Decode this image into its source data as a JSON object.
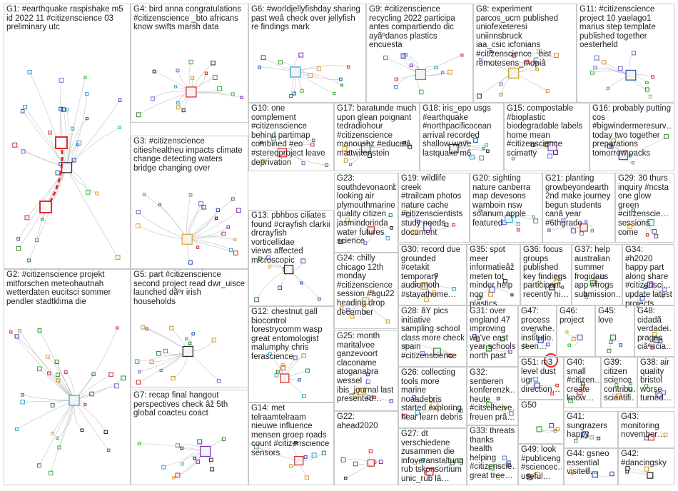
{
  "groups": [
    {
      "id": "G1",
      "text": "G1: #earthquake raspishake m5\nid 2022 11 #citizenscience 03\npreliminary utc"
    },
    {
      "id": "G4",
      "text": "G4: bird anna congratulations\n#citizenscience _bto africans\nknow swifts marsh data"
    },
    {
      "id": "G6",
      "text": "G6: #worldjellyfishday sharing\npast weâ check over jellyfish\nre findings mark"
    },
    {
      "id": "G9",
      "text": "G9: #citizenscience\nrecycling 2022 participa\nantes compartiendo dic\nayãºdanos plastics\nencuesta"
    },
    {
      "id": "G8",
      "text": "G8: experiment\nparcos_ucm published\nuniofexeteresi uniinnsbruck\niaa_csic icfonians\n#citizenscience _bist\nremotesens_mdpiâ"
    },
    {
      "id": "G11",
      "text": "G11: #citizenscience\nproject 10 yaelago1\nmarius step template\npublished together\noesterheld"
    },
    {
      "id": "G10",
      "text": "G10: one complement\n#citizenscience\nbehind partimap\ncombined #eo\n#stereoproject leave\ndeprivation"
    },
    {
      "id": "G17",
      "text": "G17: baratunde much\nupon glean poignant\ntedradiohour\n#citizenscience\nmanoushz #educatâ\nmattwitenstein"
    },
    {
      "id": "G18",
      "text": "G18: iris_epo usgs\n#earthquake\n#northpacificocean\narrival recorded\nshallow wave\nlastquake m6"
    },
    {
      "id": "G15",
      "text": "G15: compostable\n#bioplastic\nbiodegradable labels\nhome mean\n#citizenscience\nscimatty"
    },
    {
      "id": "G16",
      "text": "G16: probably putting\ncos\n#bigwindermeresurv…\ntoday two together\npreparations\ntomorrow packs"
    },
    {
      "id": "G3",
      "text": "G3: #citizenscience\ncitieshealtheu impacts climate\nchange detecting waters\nbridge changing over"
    },
    {
      "id": "G23",
      "text": "G23:\nsouthdevonaonb\nlooking air\nplymouthmarine\nquality citizen\njasmindorinda\nwater futures\nscience"
    },
    {
      "id": "G19",
      "text": "G19: wildlife creek\n#trailcam photos\nnature cache\n#citizenscientists\nstudy needs\ndocument"
    },
    {
      "id": "G20",
      "text": "G20: sighting\nnature canberra\nmap devesons\nwamboin nsw\nsolanum apple\nfeatured"
    },
    {
      "id": "G21",
      "text": "G21: planting\ngrowbeyondearth\n2nd make journey\nbegun students\ncanâ year\n#6thgrade"
    },
    {
      "id": "G29",
      "text": "G29: 30 thurs\ninquiry #ncsta\none glow\ngreen\n#citizenscie…\nsessions come"
    },
    {
      "id": "G13",
      "text": "G13: pbhbos ciliates\nfound #crayfish clarkii\ndrcrayfish vorticellidae\nviews affected\nmicroscopic"
    },
    {
      "id": "G2",
      "text": "G2: #citizenscience projekt\nmitforschen meteohautnah\nwetterdaten eucitsci sommer\npendler stadtklima die"
    },
    {
      "id": "G5",
      "text": "G5: part #citizenscience\nsecond project read dwr_uisce\nlaunched dãºr irish\nhouseholds"
    },
    {
      "id": "G24",
      "text": "G24: chilly\nchicago 12th\nmonday\n#citizenscience\nsession #agu22\nheading drop\ndecember"
    },
    {
      "id": "G30",
      "text": "G30: record due\ngrounded\n#cetakit\ntemporary\naudiomoth\n#stayathome…"
    },
    {
      "id": "G35",
      "text": "G35: spot\nmeer\ninformatieâž\nmeten tot\nminder help\nnog plastics…"
    },
    {
      "id": "G36",
      "text": "G36: focus\ngroups\npublished\nkey findings\nparticipant\nrecently hi…"
    },
    {
      "id": "G37",
      "text": "G37: help\naustralian\nsummer\nfrogidaus\napp #frogs\nsubmission…"
    },
    {
      "id": "G34",
      "text": "G34: #h2020\nhappy part\nalong share\n#citizensci…\nupdate latest\nprojects…"
    },
    {
      "id": "G12",
      "text": "G12: chestnut gall\nbiocontrol\nforestrycomm wasp\ngreat entomologist\nmalumphy chris\nferascience"
    },
    {
      "id": "G28",
      "text": "G28: ãŸ pics\ninitiative\nsampling school\nclass more check\nspain\n#citizenscience"
    },
    {
      "id": "G31",
      "text": "G31: over\nengland 47\nimproving\nwe've east\nyear schools\nnorth past"
    },
    {
      "id": "G47",
      "text": "G47:\nprocess\noverwhe…\ninstitutio…\nseen…"
    },
    {
      "id": "G46",
      "text": "G46:\nproject"
    },
    {
      "id": "G45",
      "text": "G45: love"
    },
    {
      "id": "G48",
      "text": "G48:\ncidadã\nverdadei…\npragas\nciãªncia…"
    },
    {
      "id": "G25",
      "text": "G25: month\nmaritalvee\nganzevoort\nclaconame\natoganabra\nwessel\nibis_journal last\npresented…"
    },
    {
      "id": "G51",
      "text": "G51: m3\nlevel dust\nugr\ndirection…"
    },
    {
      "id": "G40",
      "text": "G40:\nsmall\n#citizen…\ncreate\nknow…"
    },
    {
      "id": "G39",
      "text": "G39:\ncitizen\nscience\ncontribu…\nscientifi…"
    },
    {
      "id": "G38",
      "text": "G38: air\nquality\nbristol\nworse\nturned…"
    },
    {
      "id": "G26",
      "text": "G26: collecting\ntools more\nmarine\nnoaadebris\nstarted exploring\nhear learn debris"
    },
    {
      "id": "G32",
      "text": "G32:\nsentieren\nkonferenzk…\nheute\n#citsciheive…\nfreuen prã…"
    },
    {
      "id": "G50",
      "text": "G50"
    },
    {
      "id": "G7",
      "text": "G7: recap final hangout\nperspectives check âž 5th\nglobal coacteu coact"
    },
    {
      "id": "G14",
      "text": "G14: met\ntelraamtelraam\nnieuwe influence\nmensen groep roads\ncount #citizenscience\nsensors"
    },
    {
      "id": "G22",
      "text": "G22: ahead2020"
    },
    {
      "id": "G27",
      "text": "G27: dt\nverschiedene\nzusammen die\ninfoveranstaltung\nrub tskonsortium\nunic_rub lã…"
    },
    {
      "id": "G33",
      "text": "G33: threats\nthanks\nhealth\nhelping\n#citizenscie…\ngreat tree…"
    },
    {
      "id": "G41",
      "text": "G41:\nsungrazers\nhappy"
    },
    {
      "id": "G43",
      "text": "G43:\nmonitoring\nnovember…"
    },
    {
      "id": "G49",
      "text": "G49: look\n#publiceng…\n#sciencec…\nuseful…"
    },
    {
      "id": "G44",
      "text": "G44: gsneo\nessential\nvisited…"
    },
    {
      "id": "G42",
      "text": "G42:\n#dancingsky"
    }
  ],
  "highlight_color": "#e8282b",
  "edge_color": "#a9a9a9",
  "node_colors": [
    "#1f4fb4",
    "#2a8a2a",
    "#7a2fb4",
    "#c79a1a",
    "#2aa5c9",
    "#d02a2a",
    "#3bb03b",
    "#6b6bd8",
    "#e0a040",
    "#222222"
  ]
}
